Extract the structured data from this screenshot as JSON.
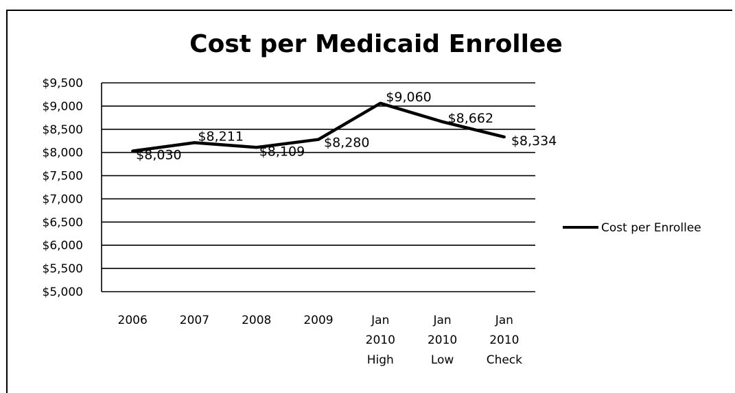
{
  "chart_data": {
    "type": "line",
    "title": "Cost per Medicaid Enrollee",
    "xlabel": "",
    "ylabel": "",
    "categories": [
      [
        "2006"
      ],
      [
        "2007"
      ],
      [
        "2008"
      ],
      [
        "2009"
      ],
      [
        "Jan",
        "2010",
        "High"
      ],
      [
        "Jan",
        "2010",
        "Low"
      ],
      [
        "Jan",
        "2010",
        "Check"
      ]
    ],
    "series": [
      {
        "name": "Cost per Enrollee",
        "values": [
          8030,
          8211,
          8109,
          8280,
          9060,
          8662,
          8334
        ],
        "data_labels": [
          "$8,030",
          "$8,211",
          "$8,109",
          "$8,280",
          "$9,060",
          "$8,662",
          "$8,334"
        ],
        "color": "#000000"
      }
    ],
    "ylim": [
      5000,
      9500
    ],
    "yticks": [
      5000,
      5500,
      6000,
      6500,
      7000,
      7500,
      8000,
      8500,
      9000,
      9500
    ],
    "ytick_labels": [
      "$5,000",
      "$5,500",
      "$6,000",
      "$6,500",
      "$7,000",
      "$7,500",
      "$8,000",
      "$8,500",
      "$9,000",
      "$9,500"
    ],
    "grid": true,
    "legend_position": "right"
  }
}
